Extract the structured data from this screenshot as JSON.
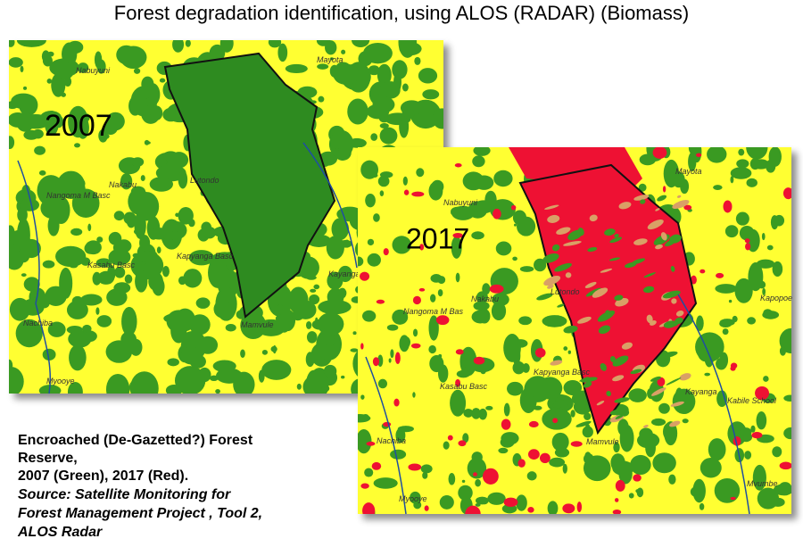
{
  "title": "Forest degradation identification, using ALOS (RADAR) (Biomass)",
  "map_2007": {
    "year": "2007",
    "places": [
      "Mayota",
      "Nabuyuni",
      "Nakabu",
      "Nangoma M Basc",
      "Lutondo",
      "Kapyanga Basc",
      "Kasabu Basc",
      "Nachiba",
      "Mamvule",
      "Myooye",
      "Kayanga"
    ]
  },
  "map_2017": {
    "year": "2017",
    "places": [
      "Mayota",
      "Nabuyuni",
      "Lutondo",
      "Nakabu",
      "Nangoma M Bas",
      "Kapopoe",
      "Kayanga",
      "Kabile School",
      "Kapyanga Basc",
      "Kasabu Basc",
      "Nachiba",
      "Mamvule",
      "Mvumbe",
      "Myooye"
    ]
  },
  "caption": {
    "lines": [
      "Encroached (De-Gazetted?) Forest",
      "Reserve,",
      "2007 (Green), 2017 (Red)."
    ],
    "source_lines": [
      "Source: Satellite Monitoring for",
      "Forest Management Project , Tool 2,",
      "ALOS Radar"
    ]
  }
}
